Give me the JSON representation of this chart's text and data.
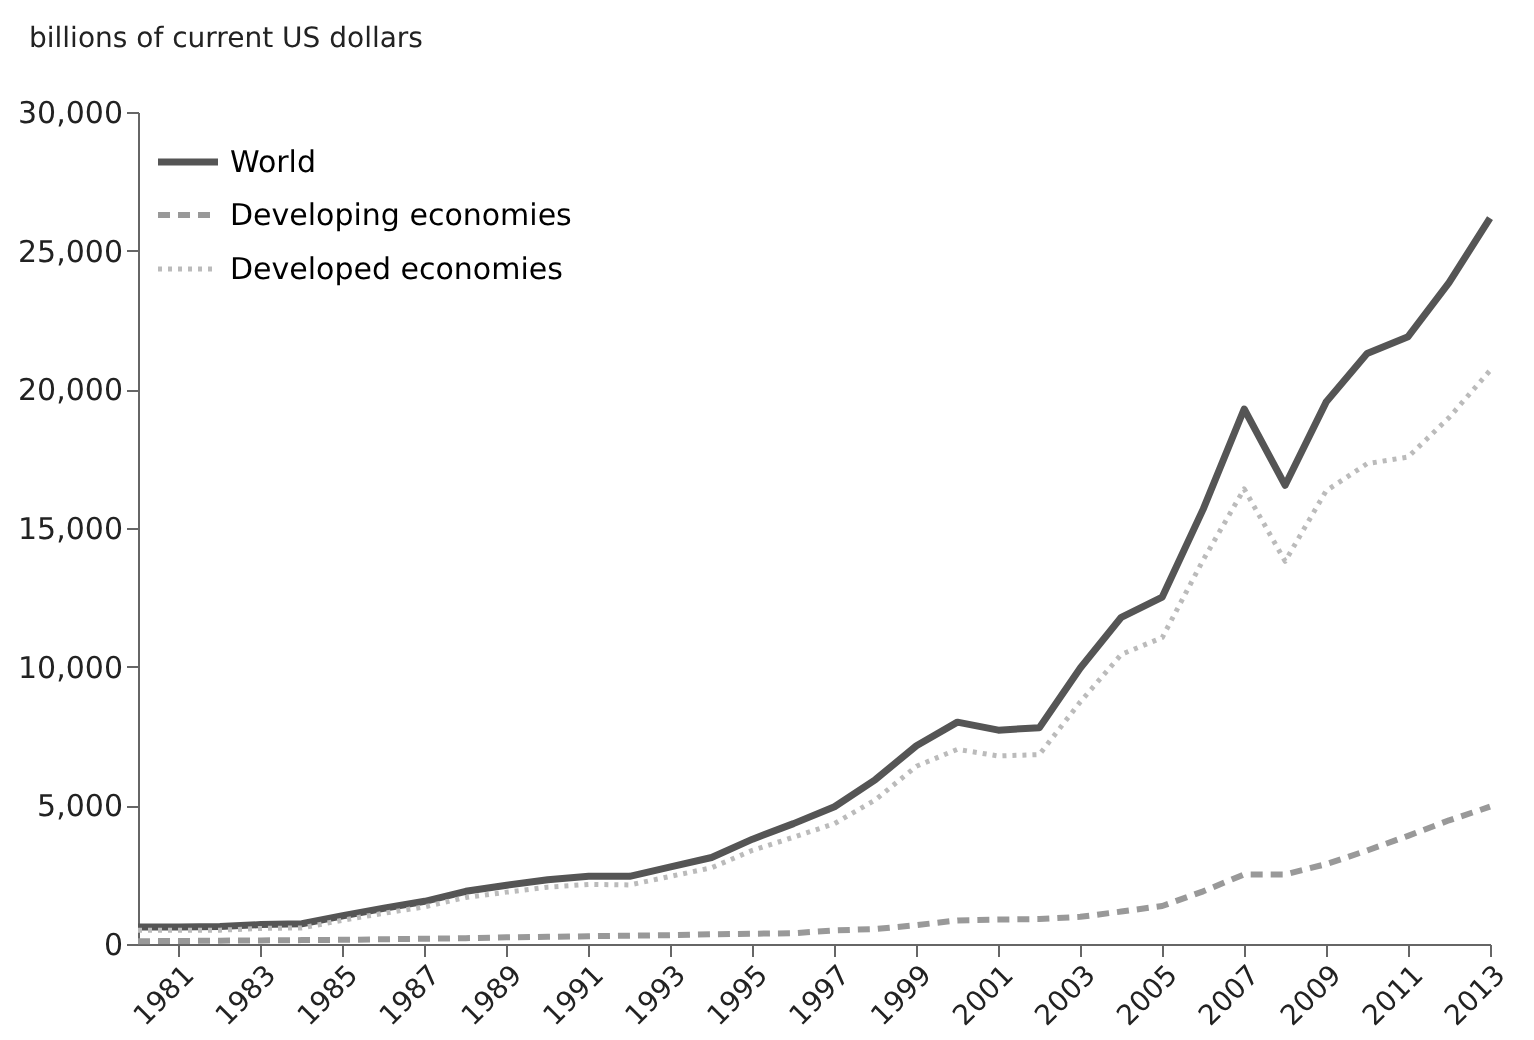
{
  "chart_data": {
    "type": "line",
    "ylabel": "billions of current US dollars",
    "x": [
      1980,
      1981,
      1982,
      1983,
      1984,
      1985,
      1986,
      1987,
      1988,
      1989,
      1990,
      1991,
      1992,
      1993,
      1994,
      1995,
      1996,
      1997,
      1998,
      1999,
      2000,
      2001,
      2002,
      2003,
      2004,
      2005,
      2006,
      2007,
      2008,
      2009,
      2010,
      2011,
      2012,
      2013
    ],
    "xlim": [
      1980,
      2013
    ],
    "xticks": [
      1981,
      1983,
      1985,
      1987,
      1989,
      1991,
      1993,
      1995,
      1997,
      1999,
      2001,
      2003,
      2005,
      2007,
      2009,
      2011,
      2013
    ],
    "ylim": [
      0,
      30000
    ],
    "yticks": [
      {
        "value": 0,
        "label": "0"
      },
      {
        "value": 5000,
        "label": "5,000"
      },
      {
        "value": 10000,
        "label": "10,000"
      },
      {
        "value": 15000,
        "label": "15,000"
      },
      {
        "value": 20000,
        "label": "20,000"
      },
      {
        "value": 25000,
        "label": "25,000"
      },
      {
        "value": 30000,
        "label": "30,000"
      }
    ],
    "grid": false,
    "legend": "top left",
    "series": [
      {
        "name": "World",
        "color": "#555555",
        "line_style": "solid",
        "values": [
          610,
          610,
          630,
          700,
          730,
          1020,
          1290,
          1540,
          1900,
          2120,
          2320,
          2440,
          2440,
          2780,
          3120,
          3780,
          4340,
          4950,
          5930,
          7150,
          8000,
          7710,
          7800,
          9950,
          11780,
          12510,
          15680,
          19290,
          16540,
          19540,
          21290,
          21900,
          23850,
          26170
        ]
      },
      {
        "name": "Developing economies",
        "color": "#999999",
        "line_style": "dashed",
        "values": [
          100,
          110,
          120,
          130,
          140,
          150,
          170,
          190,
          210,
          240,
          260,
          280,
          300,
          320,
          350,
          370,
          390,
          490,
          540,
          680,
          850,
          880,
          900,
          980,
          1170,
          1370,
          1900,
          2510,
          2510,
          2880,
          3370,
          3900,
          4460,
          4950
        ]
      },
      {
        "name": "Developed economies",
        "color": "#bbbbbb",
        "line_style": "dotted",
        "values": [
          500,
          500,
          500,
          560,
          580,
          860,
          1110,
          1340,
          1680,
          1870,
          2050,
          2150,
          2130,
          2440,
          2750,
          3380,
          3850,
          4340,
          5200,
          6410,
          7020,
          6780,
          6830,
          8730,
          10440,
          11050,
          13850,
          16410,
          13800,
          16340,
          17320,
          17560,
          18980,
          20680
        ]
      }
    ]
  }
}
